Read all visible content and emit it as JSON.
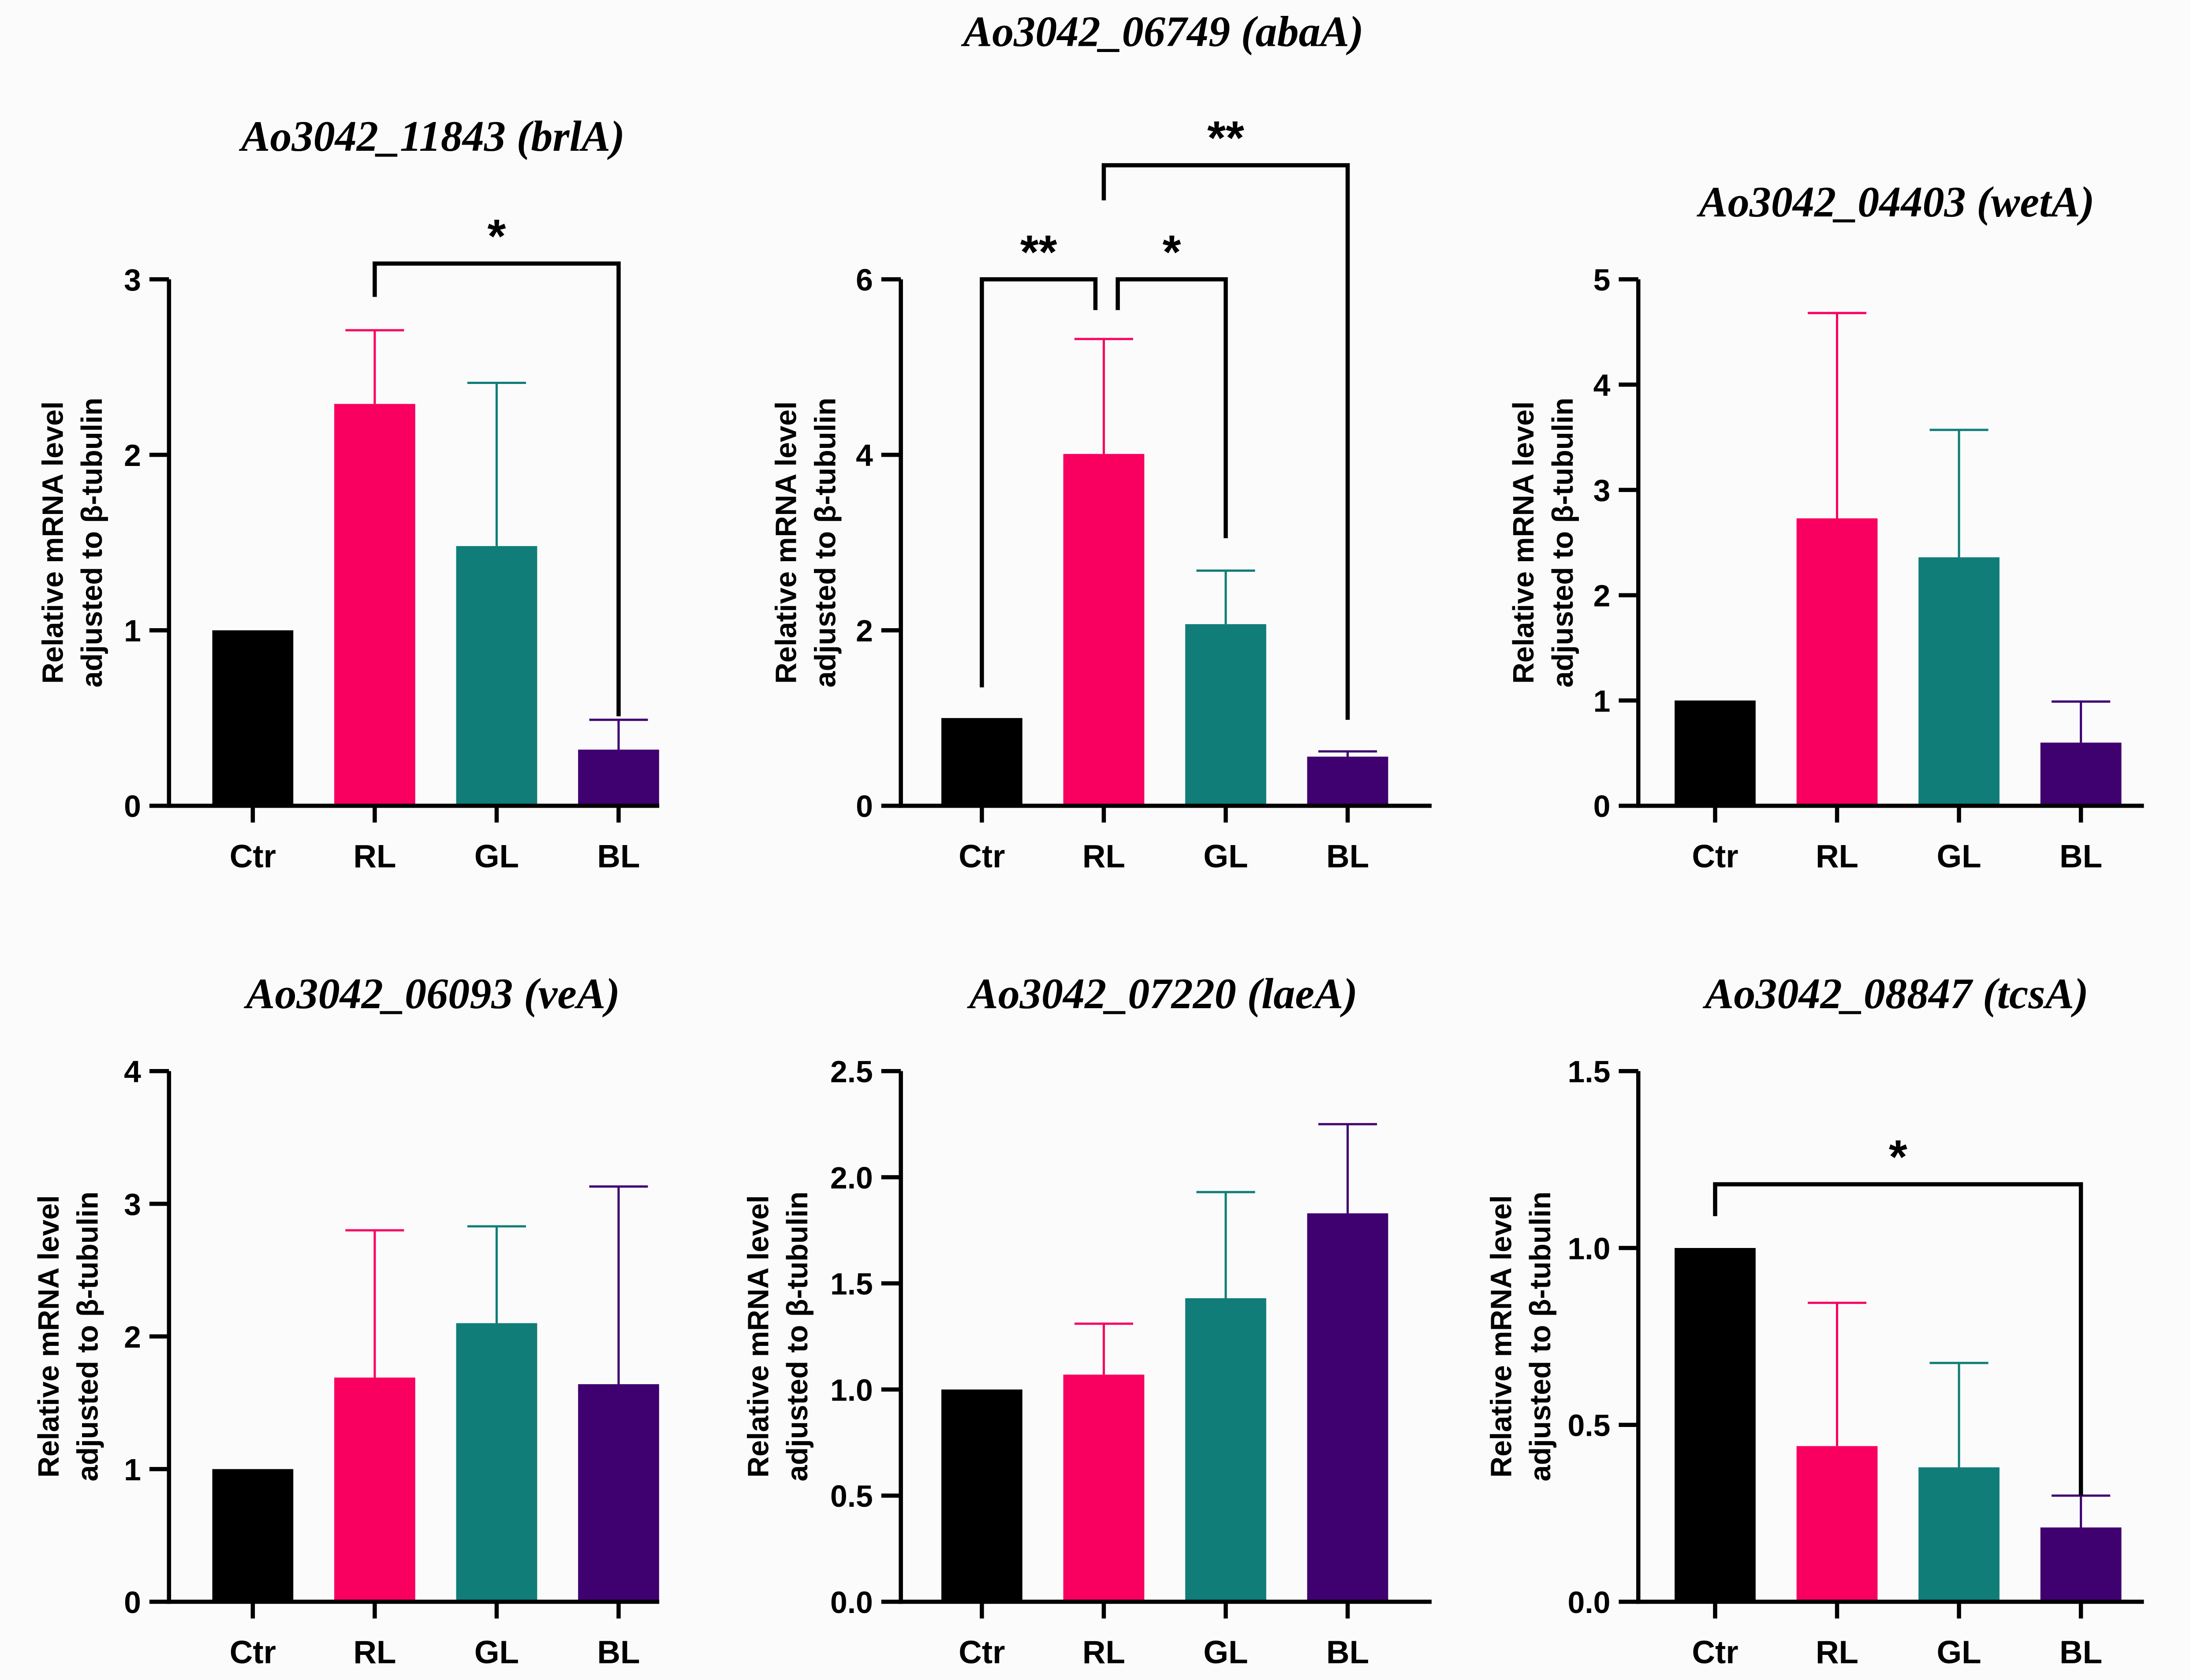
{
  "colors": {
    "Ctr": "#000000",
    "RL": "#f90060",
    "GL": "#107d78",
    "BL": "#3f0070"
  },
  "chart_data": [
    {
      "type": "bar",
      "title": "Ao3042_11843 (brlA)",
      "ylabel": [
        "Relative mRNA level",
        "adjusted to β-tubulin"
      ],
      "categories": [
        "Ctr",
        "RL",
        "GL",
        "BL"
      ],
      "values": [
        1.0,
        2.29,
        1.48,
        0.32
      ],
      "errors_upper": [
        1.0,
        2.71,
        2.41,
        0.49
      ],
      "ylim": [
        0,
        3
      ],
      "yticks": [
        0,
        1,
        2,
        3
      ],
      "ytick_labels": [
        "0",
        "1",
        "2",
        "3"
      ],
      "significance": [
        {
          "from": "RL",
          "to": "BL",
          "label": "*",
          "level": 3.09,
          "drop_from": 2.9,
          "drop_to": 0.51
        }
      ]
    },
    {
      "type": "bar",
      "title": "Ao3042_06749 (abaA)",
      "ylabel": [
        "Relative mRNA level",
        "adjusted to β-tubulin"
      ],
      "categories": [
        "Ctr",
        "RL",
        "GL",
        "BL"
      ],
      "values": [
        1.0,
        4.01,
        2.07,
        0.56
      ],
      "errors_upper": [
        1.0,
        5.32,
        2.68,
        0.62
      ],
      "ylim": [
        0,
        6
      ],
      "yticks": [
        0,
        2,
        4,
        6
      ],
      "ytick_labels": [
        "0",
        "2",
        "4",
        "6"
      ],
      "significance": [
        {
          "from": "Ctr",
          "to": "RL",
          "label": "**",
          "level": 6.0,
          "drop_from": 1.35,
          "drop_to": 5.65
        },
        {
          "from": "RL",
          "to": "GL",
          "label": "*",
          "level": 6.0,
          "drop_from": 5.65,
          "drop_to": 3.05
        },
        {
          "from": "RL",
          "to": "BL",
          "label": "**",
          "level": 7.3,
          "drop_from": 6.9,
          "drop_to": 0.98
        }
      ]
    },
    {
      "type": "bar",
      "title": "Ao3042_04403 (wetA)",
      "ylabel": [
        "Relative mRNA level",
        "adjusted to β-tubulin"
      ],
      "categories": [
        "Ctr",
        "RL",
        "GL",
        "BL"
      ],
      "values": [
        1.0,
        2.73,
        2.36,
        0.6
      ],
      "errors_upper": [
        1.0,
        4.68,
        3.57,
        0.99
      ],
      "ylim": [
        0,
        5
      ],
      "yticks": [
        0,
        1,
        2,
        3,
        4,
        5
      ],
      "ytick_labels": [
        "0",
        "1",
        "2",
        "3",
        "4",
        "5"
      ],
      "significance": []
    },
    {
      "type": "bar",
      "title": "Ao3042_06093 (veA)",
      "ylabel": [
        "Relative mRNA level",
        "adjusted to β-tubulin"
      ],
      "categories": [
        "Ctr",
        "RL",
        "GL",
        "BL"
      ],
      "values": [
        1.0,
        1.69,
        2.1,
        1.64
      ],
      "errors_upper": [
        1.0,
        2.8,
        2.83,
        3.13
      ],
      "ylim": [
        0,
        4
      ],
      "yticks": [
        0,
        1,
        2,
        3,
        4
      ],
      "ytick_labels": [
        "0",
        "1",
        "2",
        "3",
        "4"
      ],
      "significance": []
    },
    {
      "type": "bar",
      "title": "Ao3042_07220 (laeA)",
      "ylabel": [
        "Relative mRNA level",
        "adjusted to β-tubulin"
      ],
      "categories": [
        "Ctr",
        "RL",
        "GL",
        "BL"
      ],
      "values": [
        1.0,
        1.07,
        1.43,
        1.83
      ],
      "errors_upper": [
        1.0,
        1.31,
        1.93,
        2.25
      ],
      "ylim": [
        0,
        2.5
      ],
      "yticks": [
        0,
        0.5,
        1,
        1.5,
        2,
        2.5
      ],
      "ytick_labels": [
        "0.0",
        "0.5",
        "1.0",
        "1.5",
        "2.0",
        "2.5"
      ],
      "significance": []
    },
    {
      "type": "bar",
      "title": "Ao3042_08847 (tcsA)",
      "ylabel": [
        "Relative mRNA level",
        "adjusted to β-tubulin"
      ],
      "categories": [
        "Ctr",
        "RL",
        "GL",
        "BL"
      ],
      "values": [
        1.0,
        0.44,
        0.38,
        0.21
      ],
      "errors_upper": [
        1.0,
        0.845,
        0.675,
        0.3
      ],
      "ylim": [
        0,
        1.5
      ],
      "yticks": [
        0,
        0.5,
        1,
        1.5
      ],
      "ytick_labels": [
        "0.0",
        "0.5",
        "1.0",
        "1.5"
      ],
      "significance": [
        {
          "from": "Ctr",
          "to": "BL",
          "label": "*",
          "level": 1.18,
          "drop_from": 1.09,
          "drop_to": 0.3
        }
      ]
    }
  ]
}
